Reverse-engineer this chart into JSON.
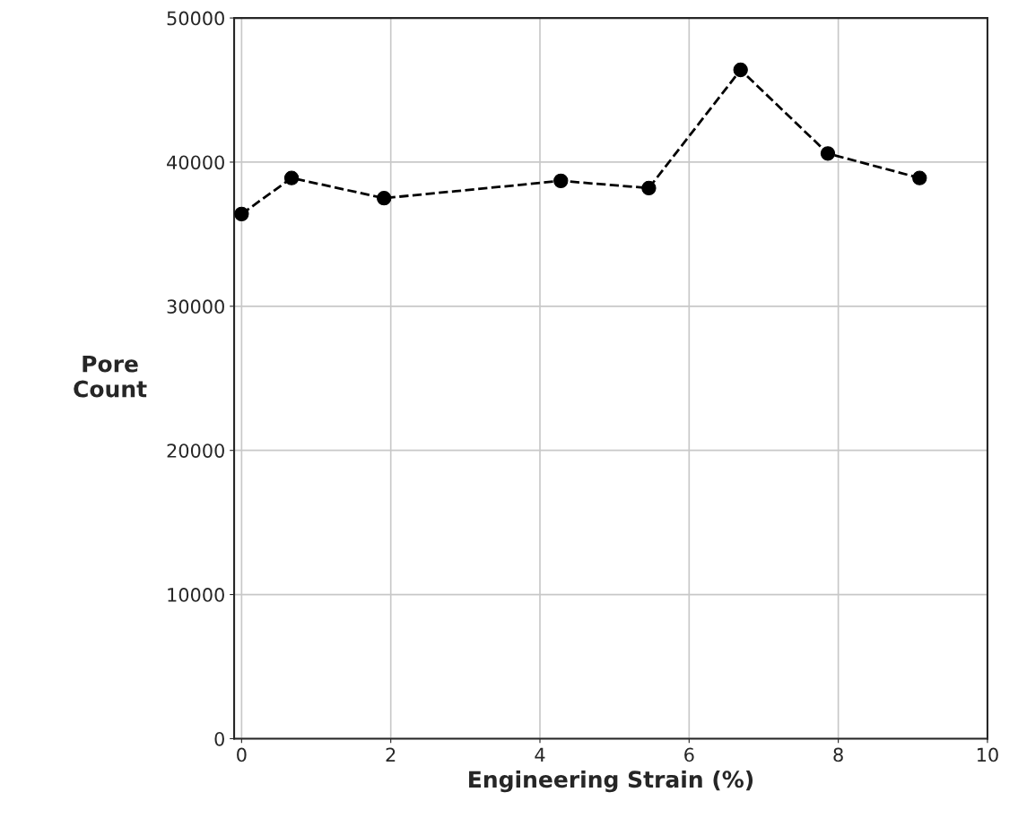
{
  "chart_data": {
    "type": "line",
    "xlabel": "Engineering Strain (%)",
    "ylabel": "Pore\nCount",
    "x": [
      0,
      0.67,
      1.91,
      4.28,
      5.46,
      6.69,
      7.86,
      9.09
    ],
    "series": [
      {
        "color": "#000000",
        "values": [
          36400,
          38900,
          37500,
          38700,
          38200,
          46400,
          40600,
          38900
        ]
      }
    ],
    "xlim": [
      -0.1,
      10
    ],
    "xticks": [
      0,
      2,
      4,
      6,
      8,
      10
    ],
    "ylim": [
      0,
      50000
    ],
    "yticks": [
      0,
      10000,
      20000,
      30000,
      40000,
      50000
    ],
    "grid": true,
    "marker": "circle",
    "line_style": "dashed"
  }
}
